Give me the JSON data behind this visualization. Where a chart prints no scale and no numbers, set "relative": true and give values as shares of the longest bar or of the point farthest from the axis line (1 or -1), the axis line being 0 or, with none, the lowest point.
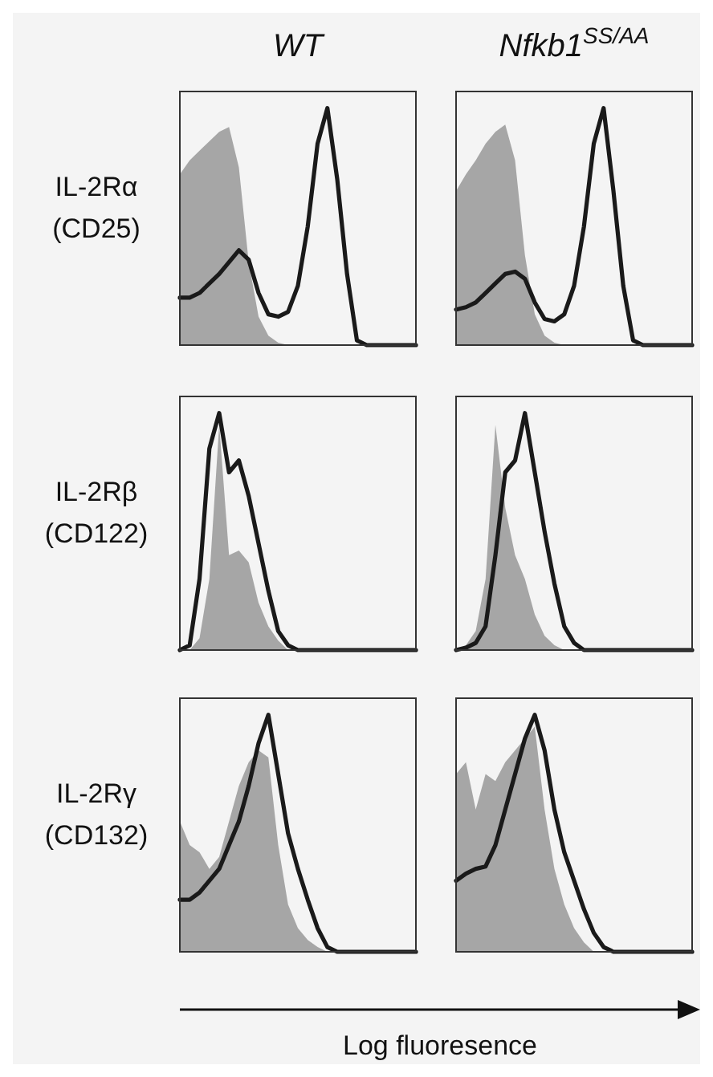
{
  "chart_data": [
    {
      "type": "area",
      "title": "WT",
      "ylabel": "IL-2Rα (CD25)",
      "relative": true,
      "categories": [
        null,
        null,
        null,
        null,
        null,
        null,
        null,
        null,
        null,
        null,
        null,
        null,
        null,
        null,
        null,
        null,
        null,
        null,
        null,
        null,
        null,
        null,
        null,
        null,
        null
      ],
      "series": [
        {
          "color": "#a6a6a6",
          "values": [
            0.72,
            0.78,
            0.82,
            0.86,
            0.9,
            0.92,
            0.75,
            0.35,
            0.12,
            0.04,
            0.01,
            0,
            0,
            0,
            0,
            0,
            0,
            0,
            0,
            0,
            0,
            0,
            0,
            0,
            0
          ]
        },
        {
          "type": "line",
          "color": "#1a1a1a",
          "values": [
            0.2,
            0.2,
            0.22,
            0.26,
            0.3,
            0.35,
            0.4,
            0.36,
            0.22,
            0.13,
            0.12,
            0.14,
            0.25,
            0.5,
            0.85,
            1.0,
            0.7,
            0.3,
            0.02,
            0,
            0,
            0,
            0,
            0,
            0
          ]
        }
      ]
    },
    {
      "type": "area",
      "title": "Nfkb1$^{SS/AA}$",
      "relative": true,
      "categories": [
        null,
        null,
        null,
        null,
        null,
        null,
        null,
        null,
        null,
        null,
        null,
        null,
        null,
        null,
        null,
        null,
        null,
        null,
        null,
        null,
        null,
        null,
        null,
        null,
        null
      ],
      "series": [
        {
          "color": "#a6a6a6",
          "values": [
            0.65,
            0.72,
            0.78,
            0.85,
            0.9,
            0.93,
            0.78,
            0.38,
            0.13,
            0.04,
            0.01,
            0,
            0,
            0,
            0,
            0,
            0,
            0,
            0,
            0,
            0,
            0,
            0,
            0,
            0
          ]
        },
        {
          "type": "line",
          "color": "#1a1a1a",
          "values": [
            0.15,
            0.16,
            0.18,
            0.22,
            0.26,
            0.3,
            0.31,
            0.28,
            0.18,
            0.11,
            0.1,
            0.13,
            0.25,
            0.5,
            0.85,
            1.0,
            0.65,
            0.25,
            0.02,
            0,
            0,
            0,
            0,
            0,
            0
          ]
        }
      ]
    },
    {
      "type": "area",
      "ylabel": "IL-2Rβ (CD122)",
      "relative": true,
      "categories": [
        null,
        null,
        null,
        null,
        null,
        null,
        null,
        null,
        null,
        null,
        null,
        null,
        null,
        null,
        null,
        null,
        null,
        null,
        null,
        null,
        null,
        null,
        null,
        null,
        null
      ],
      "series": [
        {
          "color": "#a6a6a6",
          "values": [
            0,
            0,
            0.05,
            0.3,
            0.95,
            0.4,
            0.42,
            0.37,
            0.2,
            0.1,
            0.04,
            0,
            0,
            0,
            0,
            0,
            0,
            0,
            0,
            0,
            0,
            0,
            0,
            0,
            0
          ]
        },
        {
          "type": "line",
          "color": "#1a1a1a",
          "values": [
            0,
            0.02,
            0.3,
            0.85,
            1.0,
            0.75,
            0.8,
            0.65,
            0.45,
            0.25,
            0.08,
            0.02,
            0,
            0,
            0,
            0,
            0,
            0,
            0,
            0,
            0,
            0,
            0,
            0,
            0
          ]
        }
      ]
    },
    {
      "type": "area",
      "relative": true,
      "categories": [
        null,
        null,
        null,
        null,
        null,
        null,
        null,
        null,
        null,
        null,
        null,
        null,
        null,
        null,
        null,
        null,
        null,
        null,
        null,
        null,
        null,
        null,
        null,
        null,
        null
      ],
      "series": [
        {
          "color": "#a6a6a6",
          "values": [
            0,
            0.02,
            0.08,
            0.3,
            0.95,
            0.6,
            0.4,
            0.3,
            0.15,
            0.06,
            0.02,
            0,
            0,
            0,
            0,
            0,
            0,
            0,
            0,
            0,
            0,
            0,
            0,
            0,
            0
          ]
        },
        {
          "type": "line",
          "color": "#1a1a1a",
          "values": [
            0,
            0.01,
            0.03,
            0.1,
            0.4,
            0.75,
            0.8,
            1.0,
            0.75,
            0.5,
            0.28,
            0.1,
            0.03,
            0,
            0,
            0,
            0,
            0,
            0,
            0,
            0,
            0,
            0,
            0,
            0
          ]
        }
      ]
    },
    {
      "type": "area",
      "ylabel": "IL-2Rγ (CD132)",
      "xlabel": "Log fluoresence",
      "relative": true,
      "categories": [
        null,
        null,
        null,
        null,
        null,
        null,
        null,
        null,
        null,
        null,
        null,
        null,
        null,
        null,
        null,
        null,
        null,
        null,
        null,
        null,
        null,
        null,
        null,
        null,
        null
      ],
      "series": [
        {
          "color": "#a6a6a6",
          "values": [
            0.55,
            0.45,
            0.42,
            0.35,
            0.4,
            0.55,
            0.7,
            0.8,
            0.85,
            0.82,
            0.45,
            0.2,
            0.1,
            0.05,
            0.02,
            0,
            0,
            0,
            0,
            0,
            0,
            0,
            0,
            0,
            0
          ]
        },
        {
          "type": "line",
          "color": "#1a1a1a",
          "values": [
            0.22,
            0.22,
            0.25,
            0.3,
            0.35,
            0.45,
            0.55,
            0.7,
            0.88,
            1.0,
            0.75,
            0.5,
            0.35,
            0.22,
            0.1,
            0.02,
            0,
            0,
            0,
            0,
            0,
            0,
            0,
            0,
            0
          ]
        }
      ]
    },
    {
      "type": "area",
      "relative": true,
      "categories": [
        null,
        null,
        null,
        null,
        null,
        null,
        null,
        null,
        null,
        null,
        null,
        null,
        null,
        null,
        null,
        null,
        null,
        null,
        null,
        null,
        null,
        null,
        null,
        null,
        null
      ],
      "series": [
        {
          "color": "#a6a6a6",
          "values": [
            0.75,
            0.8,
            0.6,
            0.75,
            0.72,
            0.8,
            0.85,
            0.9,
            0.95,
            0.6,
            0.35,
            0.2,
            0.1,
            0.04,
            0,
            0,
            0,
            0,
            0,
            0,
            0,
            0,
            0,
            0,
            0
          ]
        },
        {
          "type": "line",
          "color": "#1a1a1a",
          "values": [
            0.3,
            0.33,
            0.35,
            0.36,
            0.45,
            0.6,
            0.75,
            0.9,
            1.0,
            0.85,
            0.6,
            0.42,
            0.3,
            0.18,
            0.08,
            0.02,
            0,
            0,
            0,
            0,
            0,
            0,
            0,
            0,
            0
          ]
        }
      ]
    }
  ]
}
